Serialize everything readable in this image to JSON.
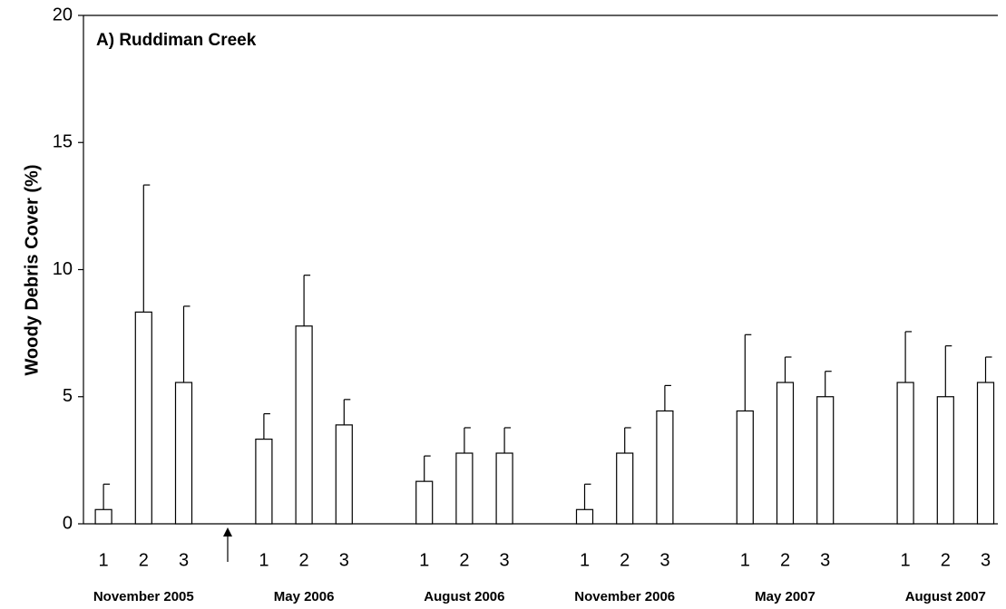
{
  "chart_data": {
    "type": "bar",
    "title": "A) Ruddiman Creek",
    "y_label": "Woody Debris Cover (%)",
    "categories": [
      "1",
      "2",
      "3",
      null,
      "1",
      "2",
      "3",
      null,
      "1",
      "2",
      "3",
      null,
      "1",
      "2",
      "3",
      null,
      "1",
      "2",
      "3",
      null,
      "1",
      "2",
      "3"
    ],
    "values": [
      0.56,
      8.33,
      5.56,
      null,
      3.33,
      7.78,
      3.89,
      null,
      1.67,
      2.78,
      2.78,
      null,
      0.56,
      2.78,
      4.44,
      null,
      4.44,
      5.56,
      5,
      null,
      5.56,
      5,
      5.56
    ],
    "errors": [
      1,
      5,
      3,
      null,
      1,
      2,
      1,
      null,
      1,
      1,
      1,
      null,
      1,
      1,
      1,
      null,
      3,
      1,
      1,
      null,
      2,
      2,
      1
    ],
    "group_labels": [
      "November 2005",
      "May 2006",
      "August 2006",
      "November 2006",
      "May 2007",
      "August 2007"
    ],
    "color": "#ffffff",
    "ylim": [
      0,
      20
    ],
    "yticks": [
      0,
      5,
      10,
      15,
      20
    ],
    "grid": false
  }
}
